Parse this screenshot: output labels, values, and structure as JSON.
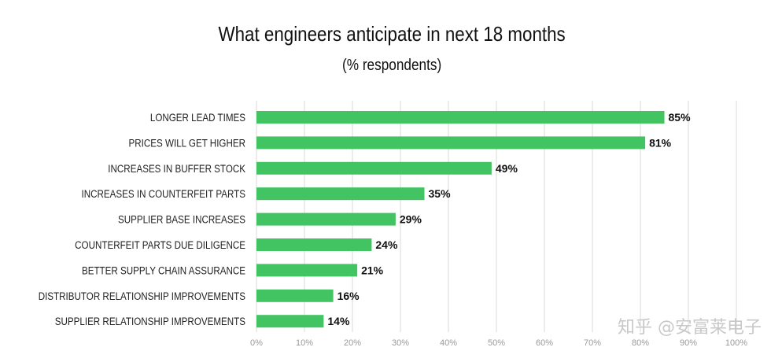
{
  "chart_data": {
    "type": "bar",
    "orientation": "horizontal",
    "title": "What engineers anticipate in next 18 months",
    "subtitle": "(% respondents)",
    "categories": [
      "LONGER LEAD TIMES",
      "PRICES WILL GET HIGHER",
      "INCREASES IN BUFFER STOCK",
      "INCREASES IN COUNTERFEIT PARTS",
      "SUPPLIER BASE INCREASES",
      "COUNTERFEIT PARTS DUE DILIGENCE",
      "BETTER SUPPLY CHAIN ASSURANCE",
      "DISTRIBUTOR RELATIONSHIP IMPROVEMENTS",
      "SUPPLIER RELATIONSHIP IMPROVEMENTS"
    ],
    "values": [
      85,
      81,
      49,
      35,
      29,
      24,
      21,
      16,
      14
    ],
    "value_labels": [
      "85%",
      "81%",
      "49%",
      "35%",
      "29%",
      "24%",
      "21%",
      "16%",
      "14%"
    ],
    "xlim": [
      0,
      100
    ],
    "x_ticks": [
      "0%",
      "10%",
      "20%",
      "30%",
      "40%",
      "50%",
      "60%",
      "70%",
      "80%",
      "90%",
      "100%"
    ],
    "grid": true,
    "bar_color": "#43c463",
    "grid_color": "#d9d9d9"
  },
  "watermark": "知乎 @安富莱电子"
}
